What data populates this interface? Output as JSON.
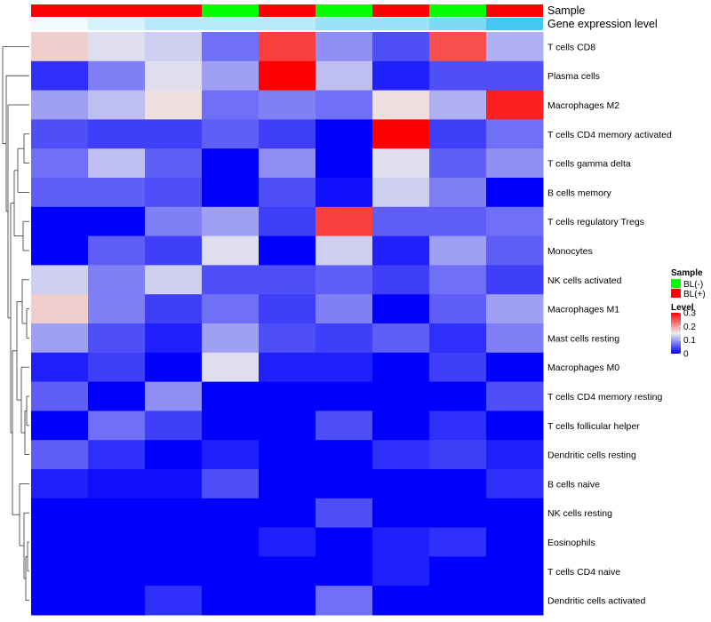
{
  "chart_data": {
    "type": "heatmap",
    "title": "",
    "annotation_tracks": [
      {
        "name": "Sample",
        "values": [
          "BL(+)",
          "BL(+)",
          "BL(+)",
          "BL(-)",
          "BL(+)",
          "BL(-)",
          "BL(+)",
          "BL(-)",
          "BL(+)"
        ]
      },
      {
        "name": "Gene expression level",
        "values": [
          0.2,
          0.21,
          0.22,
          0.22,
          0.22,
          0.23,
          0.23,
          0.24,
          0.26
        ]
      }
    ],
    "rows": [
      "T cells CD8",
      "Plasma cells",
      "Macrophages M2",
      "T cells CD4 memory activated",
      "T cells gamma delta",
      "B cells memory",
      "T cells regulatory  Tregs",
      "Monocytes",
      "NK cells activated",
      "Macrophages M1",
      "Mast cells resting",
      "Macrophages M0",
      "T cells CD4 memory resting",
      "T cells follicular helper",
      "Dendritic cells resting",
      "B cells naive",
      "NK cells resting",
      "Eosinophils",
      "T cells CD4 naive",
      "Dendritic cells activated"
    ],
    "values": [
      [
        0.17,
        0.14,
        0.13,
        0.07,
        0.26,
        0.09,
        0.05,
        0.25,
        0.11
      ],
      [
        0.03,
        0.08,
        0.14,
        0.1,
        0.3,
        0.12,
        0.02,
        0.05,
        0.05
      ],
      [
        0.1,
        0.12,
        0.16,
        0.07,
        0.08,
        0.07,
        0.16,
        0.11,
        0.28
      ],
      [
        0.05,
        0.04,
        0.04,
        0.06,
        0.04,
        0.0,
        0.3,
        0.04,
        0.07
      ],
      [
        0.07,
        0.12,
        0.06,
        0.0,
        0.09,
        0.0,
        0.14,
        0.06,
        0.09
      ],
      [
        0.06,
        0.06,
        0.05,
        0.0,
        0.05,
        0.01,
        0.13,
        0.08,
        0.0
      ],
      [
        0.0,
        0.0,
        0.08,
        0.1,
        0.04,
        0.26,
        0.06,
        0.06,
        0.07
      ],
      [
        0.0,
        0.06,
        0.04,
        0.14,
        0.0,
        0.13,
        0.02,
        0.1,
        0.06
      ],
      [
        0.13,
        0.08,
        0.13,
        0.05,
        0.05,
        0.06,
        0.04,
        0.07,
        0.04
      ],
      [
        0.17,
        0.08,
        0.04,
        0.07,
        0.04,
        0.08,
        0.0,
        0.06,
        0.1
      ],
      [
        0.1,
        0.05,
        0.02,
        0.1,
        0.05,
        0.04,
        0.06,
        0.03,
        0.08
      ],
      [
        0.02,
        0.04,
        0.0,
        0.14,
        0.02,
        0.02,
        0.0,
        0.04,
        0.0
      ],
      [
        0.06,
        0.0,
        0.09,
        0.0,
        0.0,
        0.0,
        0.0,
        0.0,
        0.05
      ],
      [
        0.0,
        0.07,
        0.04,
        0.0,
        0.0,
        0.05,
        0.0,
        0.03,
        0.0
      ],
      [
        0.06,
        0.03,
        0.0,
        0.02,
        0.0,
        0.0,
        0.03,
        0.04,
        0.02
      ],
      [
        0.02,
        0.01,
        0.01,
        0.05,
        0.0,
        0.0,
        0.0,
        0.0,
        0.03
      ],
      [
        0.0,
        0.0,
        0.0,
        0.0,
        0.0,
        0.05,
        0.0,
        0.0,
        0.0
      ],
      [
        0.0,
        0.0,
        0.0,
        0.0,
        0.02,
        0.0,
        0.02,
        0.03,
        0.0
      ],
      [
        0.0,
        0.0,
        0.0,
        0.0,
        0.0,
        0.0,
        0.02,
        0.0,
        0.0
      ],
      [
        0.0,
        0.0,
        0.03,
        0.0,
        0.0,
        0.07,
        0.0,
        0.0,
        0.0
      ]
    ],
    "color_scale": {
      "min": 0,
      "max": 0.3,
      "low": "#0000ff",
      "mid": "#eeeeee",
      "high": "#ff0000"
    },
    "row_dendrogram": true,
    "legend": {
      "sample_title": "Sample",
      "sample_entries": [
        {
          "label": "BL(-)",
          "color": "#00ff00"
        },
        {
          "label": "BL(+)",
          "color": "#ff0000"
        }
      ],
      "level_title": "Level",
      "level_ticks": [
        "0.3",
        "0.2",
        "0.1",
        "0"
      ],
      "level_tick_values": [
        0.3,
        0.2,
        0.1,
        0
      ],
      "placement": "right"
    },
    "gene_expression_colors": {
      "low": "#f2fbff",
      "high": "#44c8f2"
    }
  }
}
